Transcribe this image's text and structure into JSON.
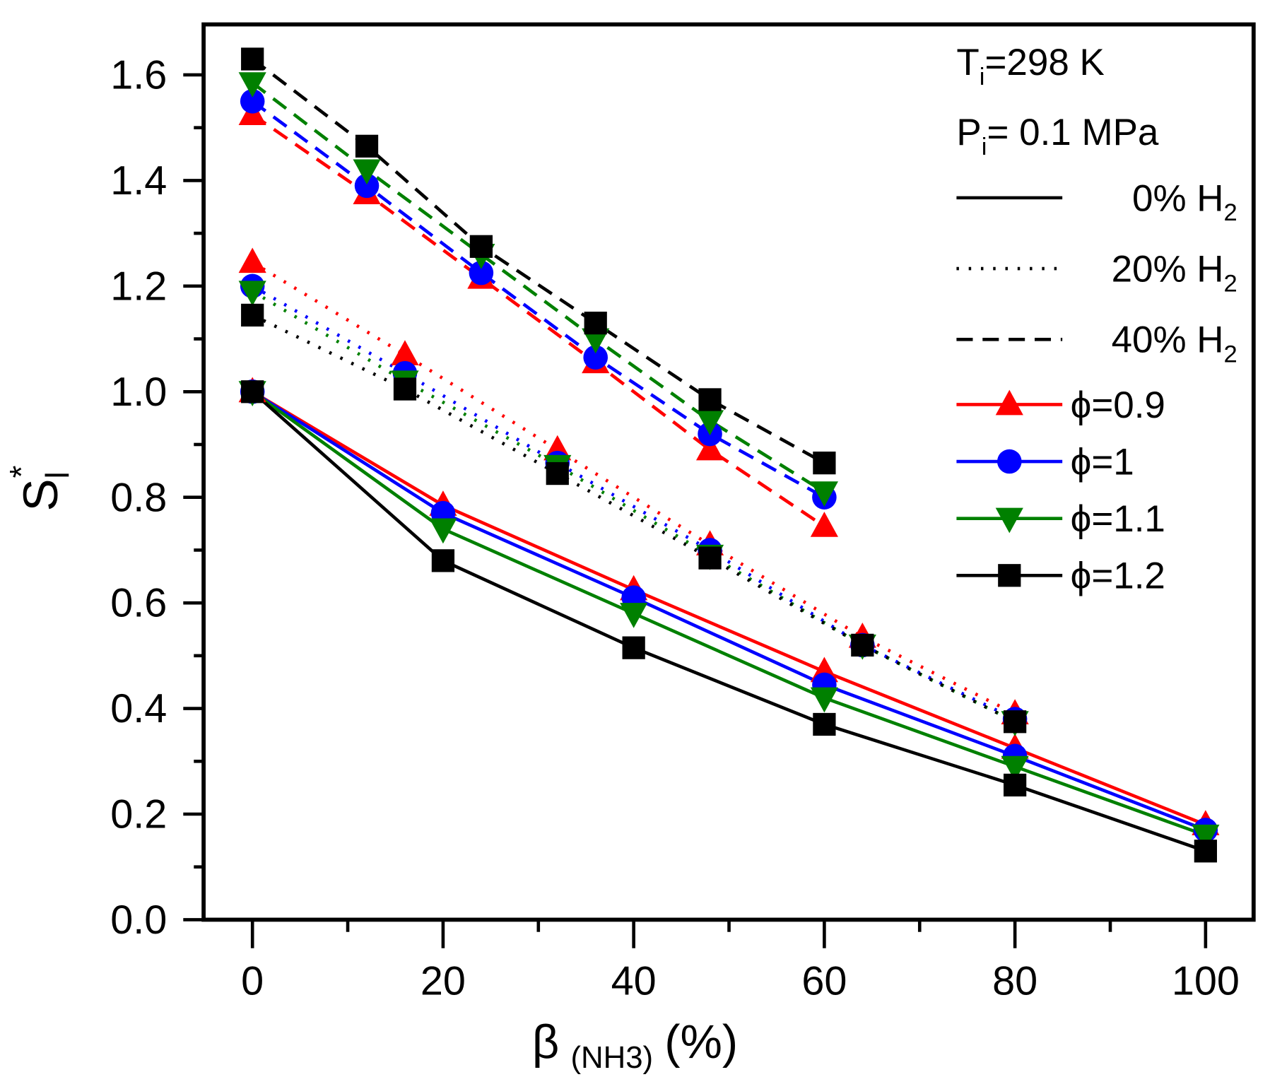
{
  "chart_data": {
    "type": "line",
    "title": "",
    "xlabel": "β",
    "xlabel_sub": "(NH3)",
    "xlabel_unit": "(%)",
    "ylabel": "S",
    "ylabel_sub": "l",
    "ylabel_sup": "*",
    "xlim": [
      -5,
      105
    ],
    "ylim": [
      0,
      1.7
    ],
    "xticks": [
      "0",
      "20",
      "40",
      "60",
      "80",
      "100"
    ],
    "yticks": [
      "0.0",
      "0.2",
      "0.4",
      "0.6",
      "0.8",
      "1.0",
      "1.2",
      "1.4",
      "1.6"
    ],
    "grid": false,
    "legend_position": "top-right",
    "annotations": {
      "t_main": "T",
      "t_sub": "i",
      "t_rest": "=298 K",
      "p_main": "P",
      "p_sub": "i",
      "p_rest": "= 0.1 MPa"
    },
    "line_styles": [
      {
        "label": "0% H",
        "sub": "2",
        "dash": "solid"
      },
      {
        "label": "20% H",
        "sub": "2",
        "dash": "dotted"
      },
      {
        "label": "40% H",
        "sub": "2",
        "dash": "dashed"
      }
    ],
    "phi_series": [
      {
        "name": "ϕ=0.9",
        "color": "#ff0000",
        "marker": "triangle-up"
      },
      {
        "name": "ϕ=1",
        "color": "#0000ff",
        "marker": "circle"
      },
      {
        "name": "ϕ=1.1",
        "color": "#008000",
        "marker": "triangle-down"
      },
      {
        "name": "ϕ=1.2",
        "color": "#000000",
        "marker": "square"
      }
    ],
    "groups": [
      {
        "h2": "0%",
        "dash": "solid",
        "x": [
          0,
          20,
          40,
          60,
          80,
          100
        ],
        "values": [
          [
            1.0,
            0.785,
            0.625,
            0.47,
            0.325,
            0.18
          ],
          [
            1.0,
            0.77,
            0.61,
            0.445,
            0.31,
            0.17
          ],
          [
            1.0,
            0.74,
            0.58,
            0.42,
            0.29,
            0.16
          ],
          [
            1.0,
            0.68,
            0.515,
            0.37,
            0.255,
            0.13
          ]
        ]
      },
      {
        "h2": "20%",
        "dash": "dotted",
        "x": [
          0,
          16,
          32,
          48,
          64,
          80
        ],
        "values": [
          [
            1.245,
            1.07,
            0.89,
            0.71,
            0.535,
            0.39
          ],
          [
            1.2,
            1.035,
            0.865,
            0.7,
            0.52,
            0.38
          ],
          [
            1.19,
            1.02,
            0.86,
            0.69,
            0.52,
            0.375
          ],
          [
            1.145,
            1.005,
            0.845,
            0.685,
            0.52,
            0.375
          ]
        ]
      },
      {
        "h2": "40%",
        "dash": "dashed",
        "x": [
          0,
          12,
          24,
          36,
          48,
          60
        ],
        "values": [
          [
            1.525,
            1.375,
            1.215,
            1.055,
            0.89,
            0.745
          ],
          [
            1.55,
            1.39,
            1.225,
            1.065,
            0.92,
            0.8
          ],
          [
            1.585,
            1.42,
            1.26,
            1.1,
            0.945,
            0.81
          ],
          [
            1.63,
            1.465,
            1.275,
            1.13,
            0.985,
            0.865
          ]
        ]
      }
    ]
  }
}
